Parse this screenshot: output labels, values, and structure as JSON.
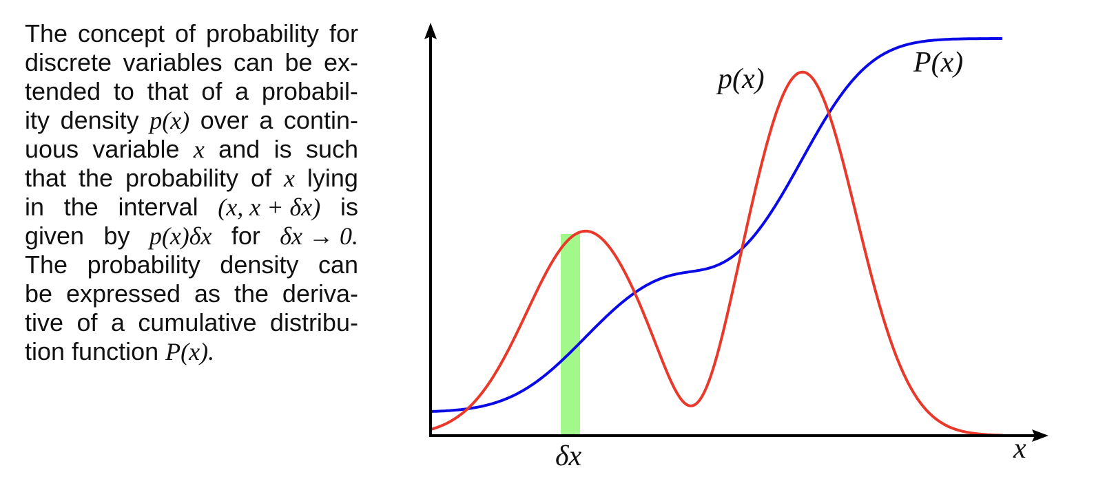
{
  "text": {
    "lines": [
      [
        "The",
        "concept",
        "of",
        "probability",
        "for"
      ],
      [
        "discrete",
        "variables",
        "can",
        "be",
        "ex-"
      ],
      [
        "tended",
        "to",
        "that",
        "of",
        "a",
        "probabil-"
      ],
      [
        "ity",
        "density",
        "p(x)",
        "over",
        "a",
        "contin-"
      ],
      [
        "uous",
        "variable",
        "x",
        "and",
        "is",
        "such"
      ],
      [
        "that",
        "the",
        "probability",
        "of",
        "x",
        "lying"
      ],
      [
        "in",
        "the",
        "interval",
        "(x, x + δx)",
        "is"
      ],
      [
        "given",
        "by",
        "p(x)δx",
        "for",
        "δx → 0."
      ],
      [
        "The",
        "probability",
        "density",
        "can"
      ],
      [
        "be",
        "expressed",
        "as",
        "the",
        "deriva-"
      ],
      [
        "tive",
        "of",
        "a",
        "cumulative",
        "distribu-"
      ],
      [
        "tion",
        "function",
        "P(x)."
      ]
    ]
  },
  "diagram": {
    "label_density": "p(x)",
    "label_cumulative": "P(x)",
    "label_interval": "δx",
    "label_axis_x": "x",
    "colors": {
      "density": "#e8392b",
      "cumulative": "#0a0ae6",
      "interval": "#a2f88a",
      "axes": "#000000"
    }
  }
}
